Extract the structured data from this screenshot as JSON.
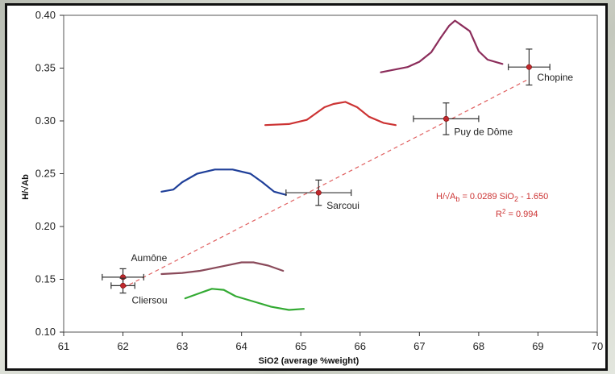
{
  "chart_data": {
    "type": "scatter",
    "title": "",
    "xlabel": "SiO2 (average %weight)",
    "ylabel": "H/√Ab",
    "xlim": [
      61,
      70
    ],
    "ylim": [
      0.1,
      0.4
    ],
    "x_ticks": [
      "61",
      "62",
      "63",
      "64",
      "65",
      "66",
      "67",
      "68",
      "69",
      "70"
    ],
    "y_ticks": [
      "0.10",
      "0.15",
      "0.20",
      "0.25",
      "0.30",
      "0.35",
      "0.40"
    ],
    "grid": false,
    "points": [
      {
        "label": "Aumône",
        "x": 62.0,
        "y": 0.152,
        "xerr": 0.35,
        "yerr": 0.008
      },
      {
        "label": "Cliersou",
        "x": 62.0,
        "y": 0.144,
        "xerr": 0.2,
        "yerr": 0.007
      },
      {
        "label": "Sarcoui",
        "x": 65.3,
        "y": 0.232,
        "xerr": 0.55,
        "yerr": 0.012
      },
      {
        "label": "Puy de Dôme",
        "x": 67.45,
        "y": 0.302,
        "xerr": 0.55,
        "yerr": 0.015
      },
      {
        "label": "Chopine",
        "x": 68.85,
        "y": 0.351,
        "xerr": 0.35,
        "yerr": 0.017
      }
    ],
    "fit_line": {
      "slope": 0.0289,
      "intercept": -1.65,
      "x_range": [
        62.0,
        68.85
      ],
      "style": "dashed",
      "equation_parts": [
        "H/√A",
        "b",
        " = 0.0289 SiO",
        "2",
        " - 1.650"
      ],
      "r2_parts": [
        "R",
        "2",
        " = 0.994"
      ]
    },
    "distributions": [
      {
        "color": "#8b2c5a",
        "points": [
          [
            66.35,
            0.346
          ],
          [
            66.8,
            0.351
          ],
          [
            67.0,
            0.356
          ],
          [
            67.2,
            0.365
          ],
          [
            67.35,
            0.378
          ],
          [
            67.5,
            0.39
          ],
          [
            67.6,
            0.395
          ],
          [
            67.7,
            0.391
          ],
          [
            67.85,
            0.385
          ],
          [
            68.0,
            0.366
          ],
          [
            68.15,
            0.358
          ],
          [
            68.4,
            0.354
          ]
        ]
      },
      {
        "color": "#cc3333",
        "points": [
          [
            64.4,
            0.296
          ],
          [
            64.8,
            0.297
          ],
          [
            65.1,
            0.301
          ],
          [
            65.4,
            0.313
          ],
          [
            65.55,
            0.316
          ],
          [
            65.75,
            0.318
          ],
          [
            65.95,
            0.313
          ],
          [
            66.15,
            0.304
          ],
          [
            66.4,
            0.298
          ],
          [
            66.6,
            0.296
          ]
        ]
      },
      {
        "color": "#1f3f99",
        "points": [
          [
            62.65,
            0.233
          ],
          [
            62.85,
            0.235
          ],
          [
            63.0,
            0.242
          ],
          [
            63.25,
            0.25
          ],
          [
            63.55,
            0.254
          ],
          [
            63.85,
            0.254
          ],
          [
            64.15,
            0.25
          ],
          [
            64.35,
            0.242
          ],
          [
            64.55,
            0.233
          ],
          [
            64.75,
            0.23
          ]
        ]
      },
      {
        "color": "#8a4a5a",
        "points": [
          [
            62.65,
            0.155
          ],
          [
            63.0,
            0.156
          ],
          [
            63.3,
            0.158
          ],
          [
            63.65,
            0.162
          ],
          [
            64.0,
            0.166
          ],
          [
            64.2,
            0.166
          ],
          [
            64.45,
            0.163
          ],
          [
            64.7,
            0.158
          ]
        ]
      },
      {
        "color": "#33aa33",
        "points": [
          [
            63.05,
            0.132
          ],
          [
            63.3,
            0.137
          ],
          [
            63.5,
            0.141
          ],
          [
            63.7,
            0.14
          ],
          [
            63.9,
            0.134
          ],
          [
            64.2,
            0.129
          ],
          [
            64.5,
            0.124
          ],
          [
            64.8,
            0.121
          ],
          [
            65.05,
            0.122
          ]
        ]
      }
    ]
  }
}
